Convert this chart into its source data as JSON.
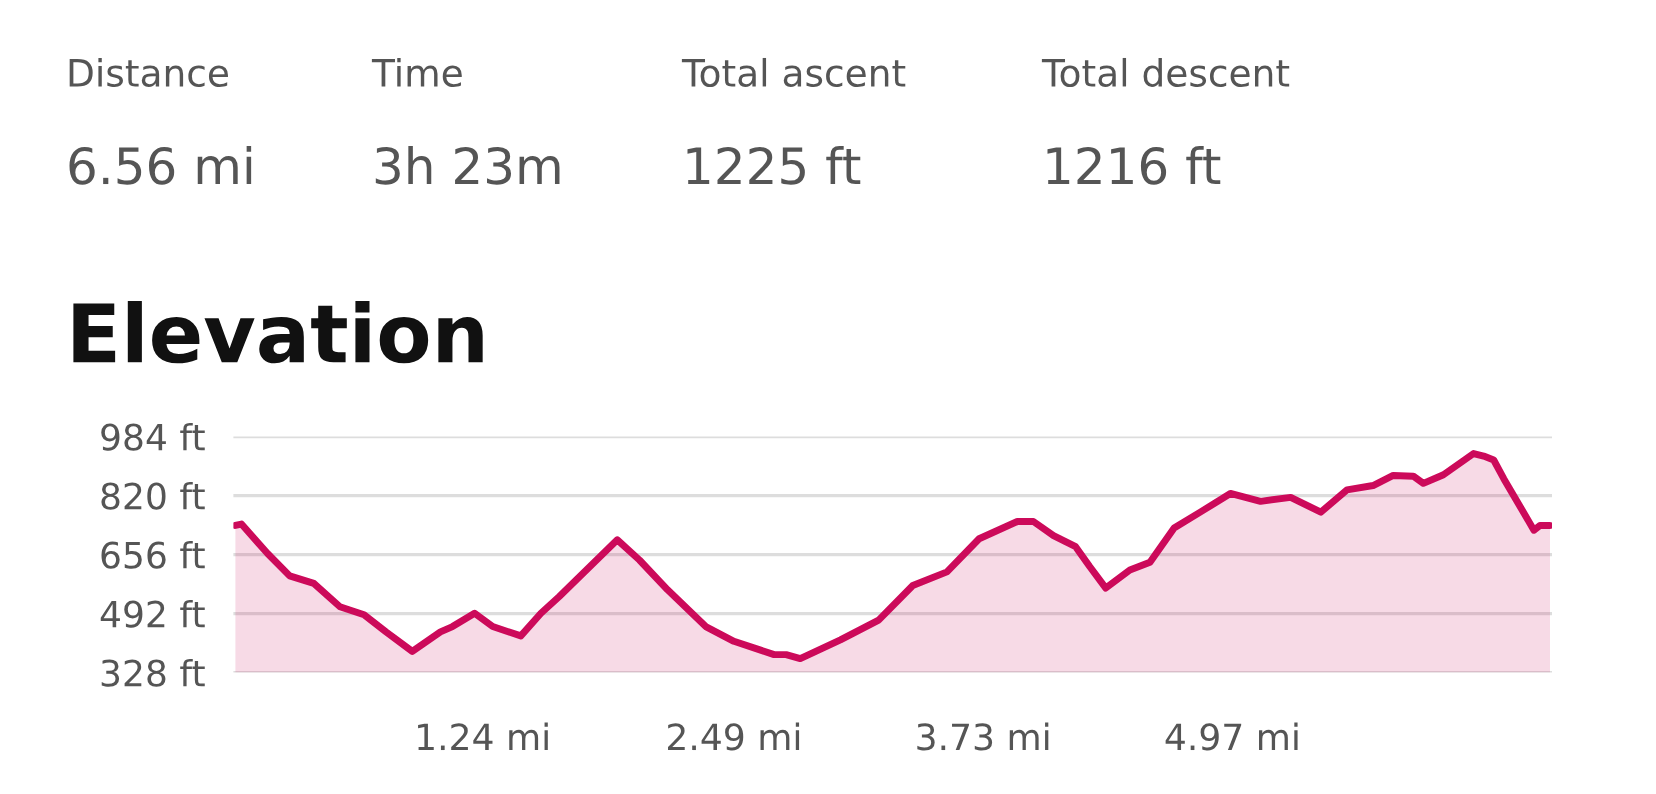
{
  "chart_data": [
    {
      "type": "other",
      "annotations": [
        "Distance",
        "6.56 mi",
        "Time",
        "3h 23m",
        "Total ascent",
        "1225 ft",
        "Total descent",
        "1216 ft"
      ]
    },
    {
      "type": "area",
      "title": "Elevation",
      "xlim": [
        0,
        6.56
      ],
      "ylim": [
        328,
        984
      ],
      "xticks": [
        {
          "value": 1.24,
          "label": "1.24 mi"
        },
        {
          "value": 2.49,
          "label": "2.49 mi"
        },
        {
          "value": 3.73,
          "label": "3.73 mi"
        },
        {
          "value": 4.97,
          "label": "4.97 mi"
        }
      ],
      "yticks": [
        {
          "value": 328,
          "label": "328 ft"
        },
        {
          "value": 492,
          "label": "492 ft"
        },
        {
          "value": 656,
          "label": "656 ft"
        },
        {
          "value": 820,
          "label": "820 ft"
        },
        {
          "value": 984,
          "label": "984 ft"
        }
      ],
      "grid": "y",
      "legend": false,
      "series": [
        {
          "color": "#cc0a5a",
          "x": [
            0.01,
            0.04,
            0.17,
            0.28,
            0.4,
            0.53,
            0.65,
            0.76,
            0.89,
            1.03,
            1.09,
            1.2,
            1.29,
            1.43,
            1.53,
            1.62,
            1.91,
            2.02,
            2.16,
            2.35,
            2.49,
            2.69,
            2.75,
            2.82,
            3.02,
            3.21,
            3.38,
            3.55,
            3.71,
            3.9,
            3.98,
            4.08,
            4.19,
            4.26,
            4.34,
            4.46,
            4.56,
            4.68,
            4.81,
            4.96,
            5.11,
            5.26,
            5.41,
            5.54,
            5.67,
            5.77,
            5.87,
            5.92,
            6.02,
            6.17,
            6.22,
            6.27,
            6.32,
            6.47,
            6.5,
            6.55
          ],
          "values": [
            737,
            741,
            659,
            597,
            576,
            511,
            489,
            441,
            387,
            441,
            456,
            493,
            456,
            430,
            493,
            539,
            697,
            641,
            558,
            456,
            415,
            378,
            378,
            367,
            419,
            474,
            570,
            608,
            700,
            748,
            748,
            709,
            678,
            623,
            563,
            613,
            635,
            730,
            774,
            826,
            804,
            815,
            774,
            836,
            848,
            876,
            874,
            854,
            878,
            937,
            930,
            919,
            867,
            724,
            737,
            737
          ]
        }
      ]
    }
  ]
}
